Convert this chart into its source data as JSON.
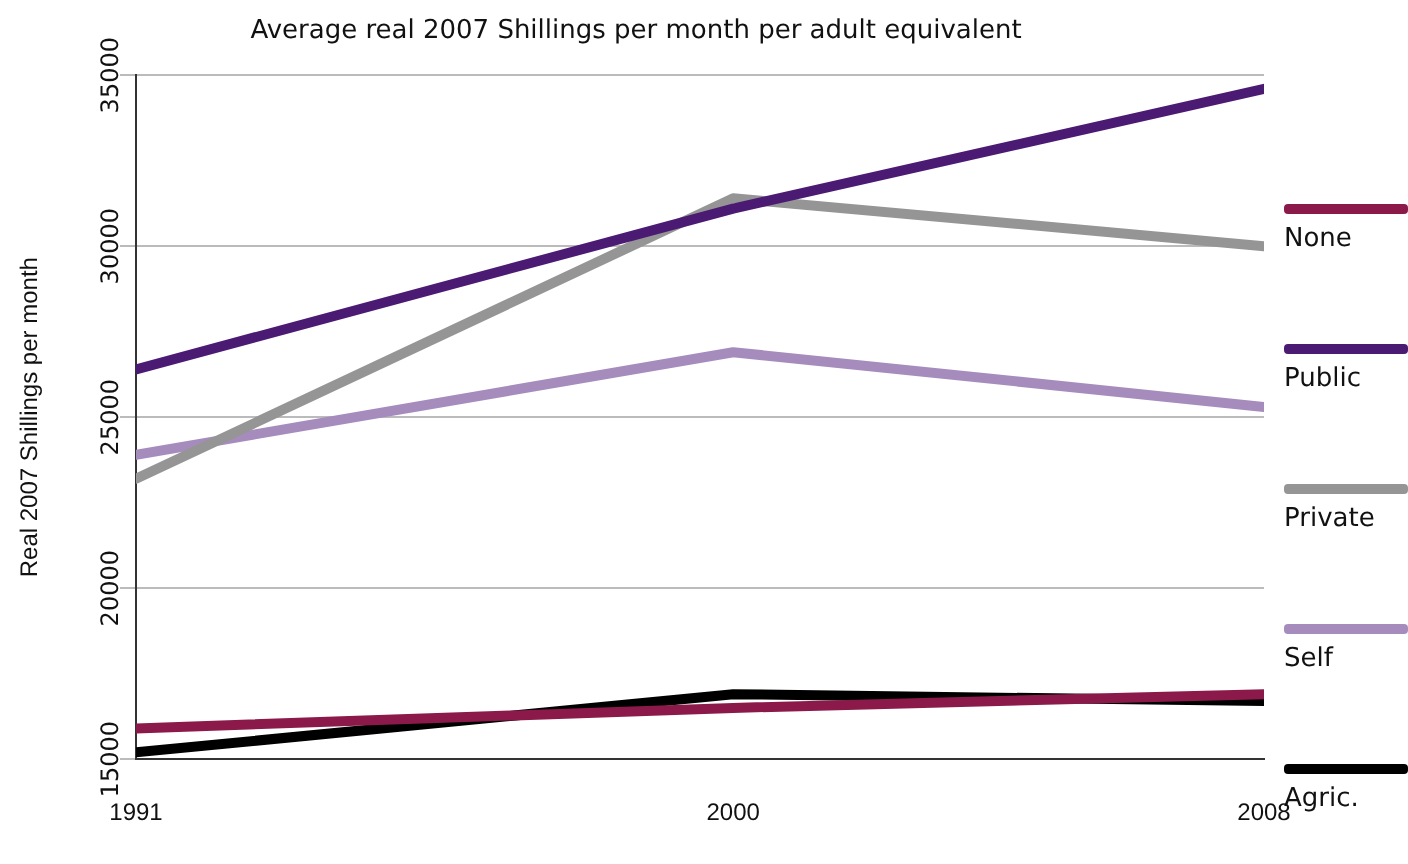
{
  "chart_data": {
    "type": "line",
    "title": "Average real 2007 Shillings per month per adult equivalent",
    "ylabel": "Real 2007 Shillings per month",
    "x": [
      1991,
      2000,
      2008
    ],
    "xlim": [
      1991,
      2008
    ],
    "xticks": [
      1991,
      2000,
      2008
    ],
    "ylim": [
      15000,
      35000
    ],
    "yticks": [
      15000,
      20000,
      25000,
      30000,
      35000
    ],
    "grid": "y",
    "legend": "right",
    "marker": "none",
    "line_style": "solid",
    "series": [
      {
        "name": "None",
        "color": "#8b1a4a",
        "values": [
          15900,
          16500,
          16900
        ]
      },
      {
        "name": "Public",
        "color": "#4b1a73",
        "values": [
          26400,
          31100,
          34600
        ]
      },
      {
        "name": "Private",
        "color": "#959595",
        "values": [
          23200,
          31400,
          30000
        ]
      },
      {
        "name": "Self",
        "color": "#a68cbd",
        "values": [
          23900,
          26900,
          25300
        ]
      },
      {
        "name": "Agric.",
        "color": "#000000",
        "values": [
          15200,
          16900,
          16700
        ]
      }
    ]
  }
}
